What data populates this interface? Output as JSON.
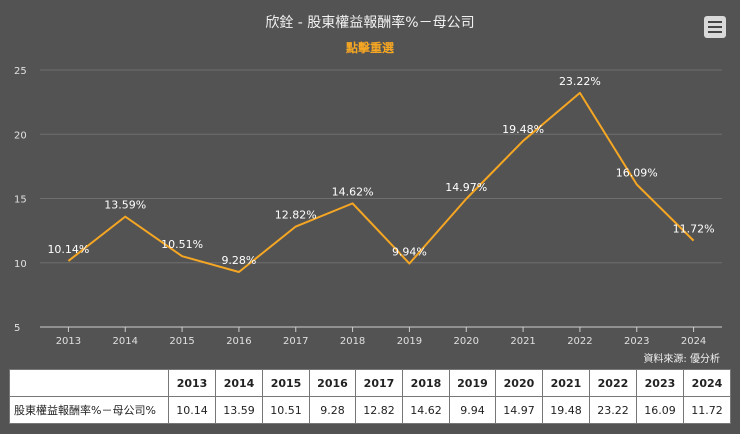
{
  "title": "欣銓 - 股東權益報酬率%－母公司",
  "subtitle": "點擊重選",
  "source": "資料來源: 優分析",
  "table": {
    "row_label": "股東權益報酬率%－母公司%",
    "years": [
      "2013",
      "2014",
      "2015",
      "2016",
      "2017",
      "2018",
      "2019",
      "2020",
      "2021",
      "2022",
      "2023",
      "2024"
    ],
    "values": [
      "10.14",
      "13.59",
      "10.51",
      "9.28",
      "12.82",
      "14.62",
      "9.94",
      "14.97",
      "19.48",
      "23.22",
      "16.09",
      "11.72"
    ]
  },
  "colors": {
    "line": "#f5a623",
    "background": "#535353",
    "grid": "#6e6e6e",
    "subtitle": "#f5a623"
  },
  "chart_data": {
    "type": "line",
    "categories": [
      "2013",
      "2014",
      "2015",
      "2016",
      "2017",
      "2018",
      "2019",
      "2020",
      "2021",
      "2022",
      "2023",
      "2024"
    ],
    "values": [
      10.14,
      13.59,
      10.51,
      9.28,
      12.82,
      14.62,
      9.94,
      14.97,
      19.48,
      23.22,
      16.09,
      11.72
    ],
    "data_labels": [
      "10.14%",
      "13.59%",
      "10.51%",
      "9.28%",
      "12.82%",
      "14.62%",
      "9.94%",
      "14.97%",
      "19.48%",
      "23.22%",
      "16.09%",
      "11.72%"
    ],
    "y_ticks": [
      "5",
      "10",
      "15",
      "20",
      "25"
    ],
    "ylim": [
      5,
      25
    ],
    "grid": true,
    "legend": "none"
  }
}
